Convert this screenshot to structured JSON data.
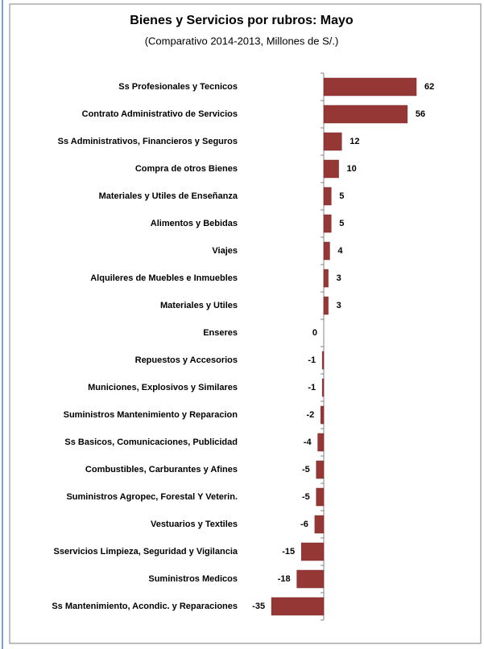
{
  "chart_data": {
    "type": "bar",
    "orientation": "horizontal",
    "title": "Bienes y Servicios por rubros:  Mayo",
    "subtitle": "(Comparativo 2014-2013, Millones de S/.)",
    "categories": [
      "Ss Profesionales y Tecnicos",
      "Contrato Administrativo de Servicios",
      "Ss Administrativos, Financieros y Seguros",
      "Compra de otros Bienes",
      "Materiales y Utiles de Enseñanza",
      "Alimentos y Bebidas",
      "Viajes",
      "Alquileres de Muebles e Inmuebles",
      "Materiales y  Utiles",
      "Enseres",
      "Repuestos y Accesorios",
      "Municiones,  Explosivos y Similares",
      "Suministros Mantenimiento y Reparacion",
      "Ss Basicos, Comunicaciones, Publicidad",
      "Combustibles, Carburantes y Afines",
      "Suministros Agropec, Forestal Y Veterin.",
      "Vestuarios y Textiles",
      "Sservicios Limpieza, Seguridad y Vigilancia",
      "Suministros Medicos",
      "Ss Mantenimiento, Acondic. y  Reparaciones"
    ],
    "values": [
      62,
      56,
      12,
      10,
      5,
      5,
      4,
      3,
      3,
      0,
      -1,
      -1,
      -2,
      -4,
      -5,
      -5,
      -6,
      -15,
      -18,
      -35
    ],
    "color": "#953735"
  }
}
